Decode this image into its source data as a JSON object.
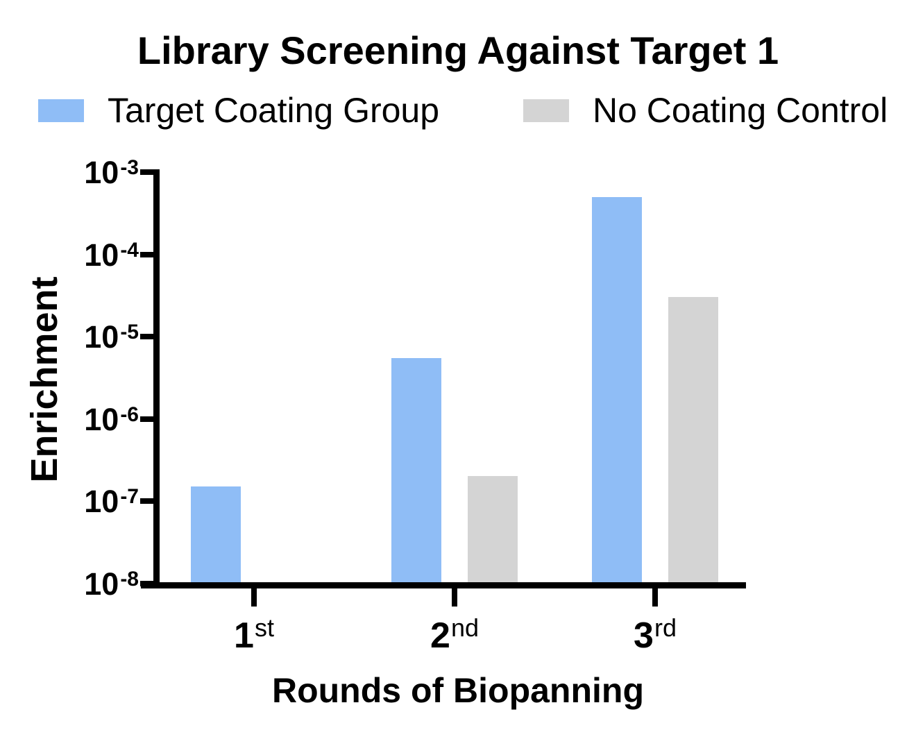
{
  "chart": {
    "title": "Library Screening Against Target 1",
    "xlabel": "Rounds of Biopanning",
    "ylabel": "Enrichment"
  },
  "chart_data": {
    "type": "bar",
    "title": "Library Screening Against Target 1",
    "xlabel": "Rounds of Biopanning",
    "ylabel": "Enrichment",
    "y_scale": "log",
    "ylim": [
      1e-08,
      0.001
    ],
    "y_tick_exponents": [
      -3,
      -4,
      -5,
      -6,
      -7,
      -8
    ],
    "y_tick_base": "10",
    "grid": false,
    "legend_position": "top",
    "categories": [
      {
        "num": "1",
        "suffix": "st"
      },
      {
        "num": "2",
        "suffix": "nd"
      },
      {
        "num": "3",
        "suffix": "rd"
      }
    ],
    "series": [
      {
        "name": "Target Coating Group",
        "color": "#8FBDF6",
        "values": [
          1.5e-07,
          5.5e-06,
          0.0005
        ]
      },
      {
        "name": "No Coating Control",
        "color": "#D4D4D4",
        "values": [
          null,
          2e-07,
          3e-05
        ]
      }
    ]
  }
}
